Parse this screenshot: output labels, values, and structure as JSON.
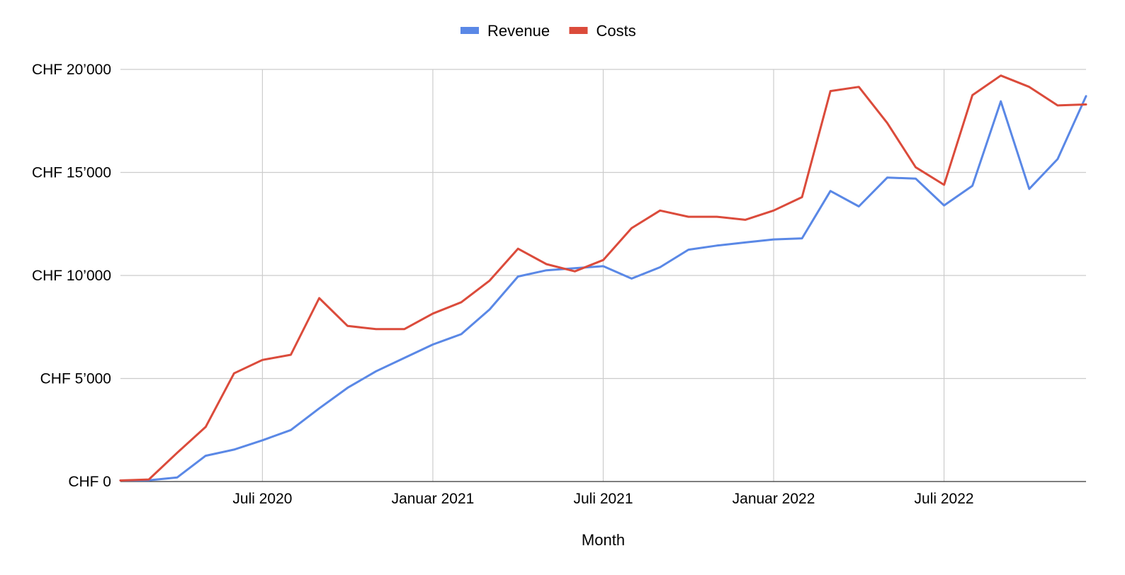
{
  "chart_data": {
    "type": "line",
    "xlabel": "Month",
    "ylabel": "",
    "ylim": [
      0,
      20000
    ],
    "y_ticks": [
      {
        "value": 0,
        "label": "CHF 0"
      },
      {
        "value": 5000,
        "label": "CHF 5’000"
      },
      {
        "value": 10000,
        "label": "CHF 10’000"
      },
      {
        "value": 15000,
        "label": "CHF 15’000"
      },
      {
        "value": 20000,
        "label": "CHF 20’000"
      }
    ],
    "x_ticks": [
      {
        "month": "2020-07",
        "label": "Juli 2020"
      },
      {
        "month": "2021-01",
        "label": "Januar 2021"
      },
      {
        "month": "2021-07",
        "label": "Juli 2021"
      },
      {
        "month": "2022-01",
        "label": "Januar 2022"
      },
      {
        "month": "2022-07",
        "label": "Juli 2022"
      }
    ],
    "x": [
      "2020-02",
      "2020-03",
      "2020-04",
      "2020-05",
      "2020-06",
      "2020-07",
      "2020-08",
      "2020-09",
      "2020-10",
      "2020-11",
      "2020-12",
      "2021-01",
      "2021-02",
      "2021-03",
      "2021-04",
      "2021-05",
      "2021-06",
      "2021-07",
      "2021-08",
      "2021-09",
      "2021-10",
      "2021-11",
      "2021-12",
      "2022-01",
      "2022-02",
      "2022-03",
      "2022-04",
      "2022-05",
      "2022-06",
      "2022-07",
      "2022-08",
      "2022-09",
      "2022-10",
      "2022-11",
      "2022-12"
    ],
    "series": [
      {
        "name": "Revenue",
        "color": "#5a88e6",
        "values": [
          50,
          60,
          200,
          1250,
          1550,
          2000,
          2500,
          3550,
          4550,
          5350,
          6000,
          6650,
          7150,
          8350,
          9950,
          10250,
          10350,
          10450,
          9850,
          10400,
          11250,
          11450,
          11600,
          11750,
          11800,
          14100,
          13350,
          14750,
          14700,
          13400,
          14350,
          18450,
          14200,
          15650,
          18700
        ]
      },
      {
        "name": "Costs",
        "color": "#db4b3b",
        "values": [
          50,
          100,
          1400,
          2650,
          5250,
          5900,
          6150,
          8900,
          7550,
          7400,
          7400,
          8150,
          8700,
          9750,
          11300,
          10550,
          10200,
          10750,
          12300,
          13150,
          12850,
          12850,
          12700,
          13150,
          13800,
          18950,
          19150,
          17400,
          15250,
          14400,
          18750,
          19700,
          19150,
          18250,
          18300
        ]
      }
    ],
    "grid": true,
    "legend_position": "top-center"
  }
}
